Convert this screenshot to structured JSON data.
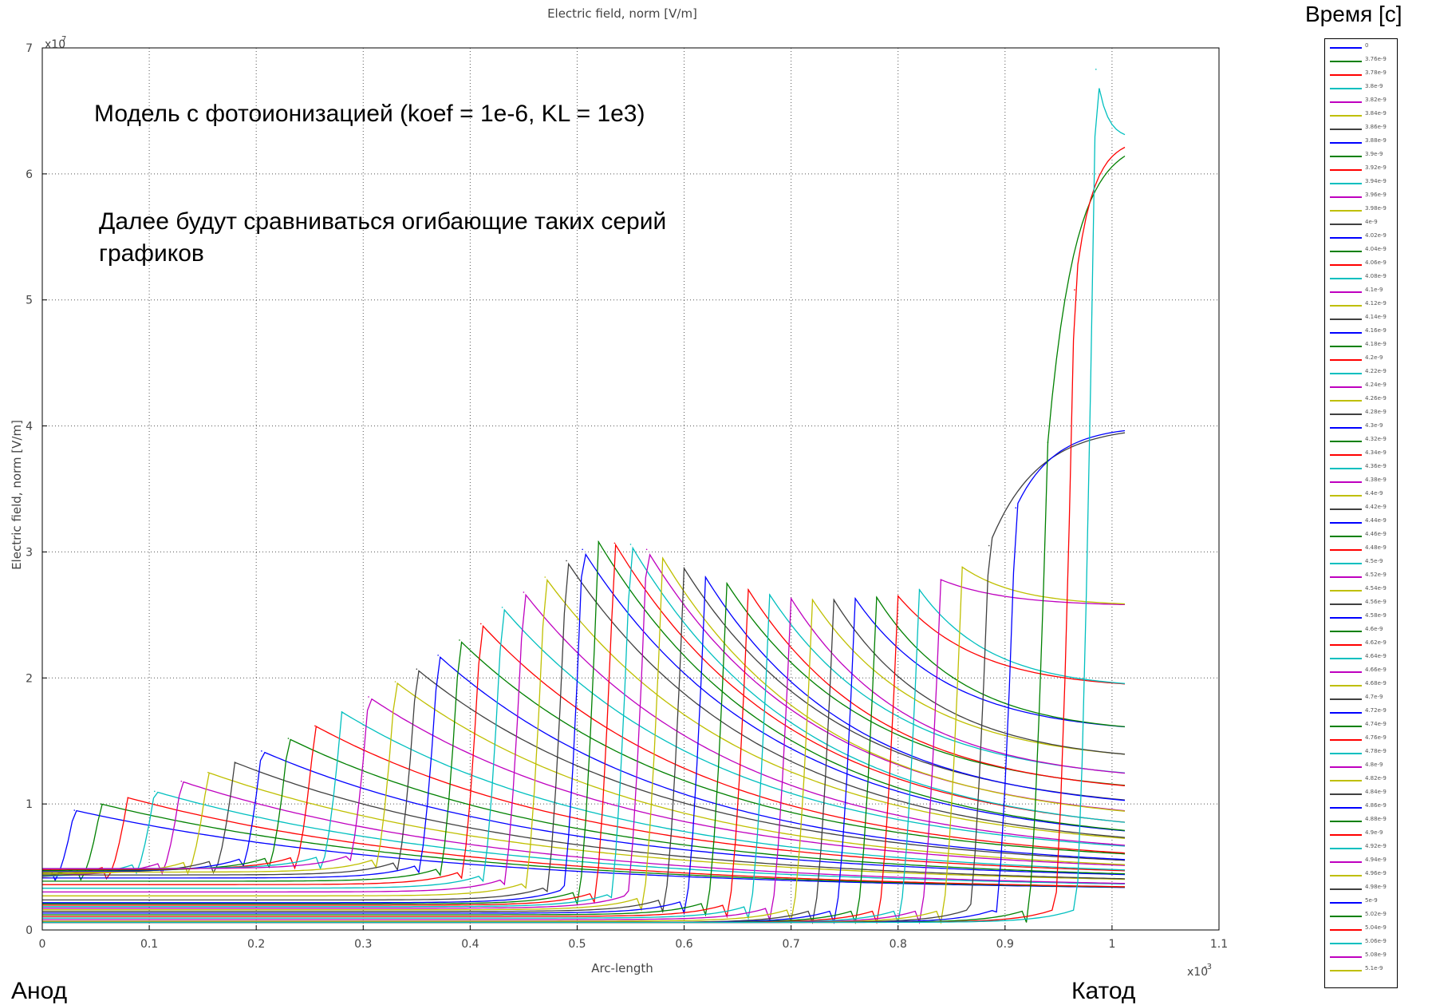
{
  "chart_data": {
    "type": "line",
    "title": "Electric field, norm [V/m]",
    "xlabel": "Arc-length",
    "ylabel": "Electric field, norm [V/m]",
    "x_exponent_label": "x10",
    "x_exponent_power": "-3",
    "y_exponent_label": "x10",
    "y_exponent_power": "7",
    "xlim": [
      0,
      1.1
    ],
    "ylim": [
      0,
      7
    ],
    "x_ticks": [
      "0",
      "0.1",
      "0.2",
      "0.3",
      "0.4",
      "0.5",
      "0.6",
      "0.7",
      "0.8",
      "0.9",
      "1",
      "1.1"
    ],
    "y_ticks": [
      "0",
      "1",
      "2",
      "3",
      "4",
      "5",
      "6",
      "7"
    ],
    "grid": true,
    "legend_title": "Время [c]",
    "legend_placement": "right",
    "series_colors": [
      "#0000ff",
      "#008000",
      "#ff0000",
      "#00bfbf",
      "#bf00bf",
      "#bfbf00",
      "#404040"
    ],
    "legend": [
      "0",
      "3.76e-9",
      "3.78e-9",
      "3.8e-9",
      "3.82e-9",
      "3.84e-9",
      "3.86e-9",
      "3.88e-9",
      "3.9e-9",
      "3.92e-9",
      "3.94e-9",
      "3.96e-9",
      "3.98e-9",
      "4e-9",
      "4.02e-9",
      "4.04e-9",
      "4.06e-9",
      "4.08e-9",
      "4.1e-9",
      "4.12e-9",
      "4.14e-9",
      "4.16e-9",
      "4.18e-9",
      "4.2e-9",
      "4.22e-9",
      "4.24e-9",
      "4.26e-9",
      "4.28e-9",
      "4.3e-9",
      "4.32e-9",
      "4.34e-9",
      "4.36e-9",
      "4.38e-9",
      "4.4e-9",
      "4.42e-9",
      "4.44e-9",
      "4.46e-9",
      "4.48e-9",
      "4.5e-9",
      "4.52e-9",
      "4.54e-9",
      "4.56e-9",
      "4.58e-9",
      "4.6e-9",
      "4.62e-9",
      "4.64e-9",
      "4.66e-9",
      "4.68e-9",
      "4.7e-9",
      "4.72e-9",
      "4.74e-9",
      "4.76e-9",
      "4.78e-9",
      "4.8e-9",
      "4.82e-9",
      "4.84e-9",
      "4.86e-9",
      "4.88e-9",
      "4.9e-9",
      "4.92e-9",
      "4.94e-9",
      "4.96e-9",
      "4.98e-9",
      "5e-9",
      "5.02e-9",
      "5.04e-9",
      "5.06e-9",
      "5.08e-9",
      "5.1e-9"
    ],
    "front_peaks": {
      "x": [
        0.03,
        0.055,
        0.08,
        0.105,
        0.13,
        0.155,
        0.18,
        0.205,
        0.23,
        0.255,
        0.28,
        0.305,
        0.33,
        0.35,
        0.37,
        0.39,
        0.41,
        0.43,
        0.45,
        0.47,
        0.49,
        0.505,
        0.52,
        0.535,
        0.55,
        0.565,
        0.58,
        0.6,
        0.62,
        0.64,
        0.66,
        0.68,
        0.7,
        0.72,
        0.74,
        0.76,
        0.78,
        0.8,
        0.82,
        0.84,
        0.86,
        0.885,
        0.91,
        0.94,
        0.965,
        0.985
      ],
      "y": [
        0.95,
        1.0,
        1.05,
        1.1,
        1.18,
        1.25,
        1.33,
        1.42,
        1.52,
        1.62,
        1.73,
        1.85,
        1.97,
        2.07,
        2.18,
        2.3,
        2.43,
        2.56,
        2.68,
        2.8,
        2.93,
        3.02,
        3.08,
        3.07,
        3.06,
        3.02,
        2.95,
        2.87,
        2.8,
        2.75,
        2.7,
        2.66,
        2.63,
        2.62,
        2.62,
        2.63,
        2.64,
        2.65,
        2.7,
        2.78,
        2.88,
        3.05,
        3.35,
        3.87,
        5.08,
        6.83
      ]
    },
    "final_values_at_end": [
      0.3,
      0.32,
      0.35,
      0.38,
      0.4,
      0.43,
      0.46,
      0.5,
      0.55,
      0.6,
      0.65,
      0.72,
      0.82,
      0.92,
      1.05,
      1.16,
      1.32,
      1.55,
      1.91,
      2.57,
      4.0,
      6.28
    ]
  },
  "annotations": {
    "model": "Модель с фотоионизацией (koef = 1e-6, KL = 1e3)",
    "compare": "Далее будут сравниваться огибающие таких серий графиков",
    "anode": "Анод",
    "cathode": "Катод"
  }
}
